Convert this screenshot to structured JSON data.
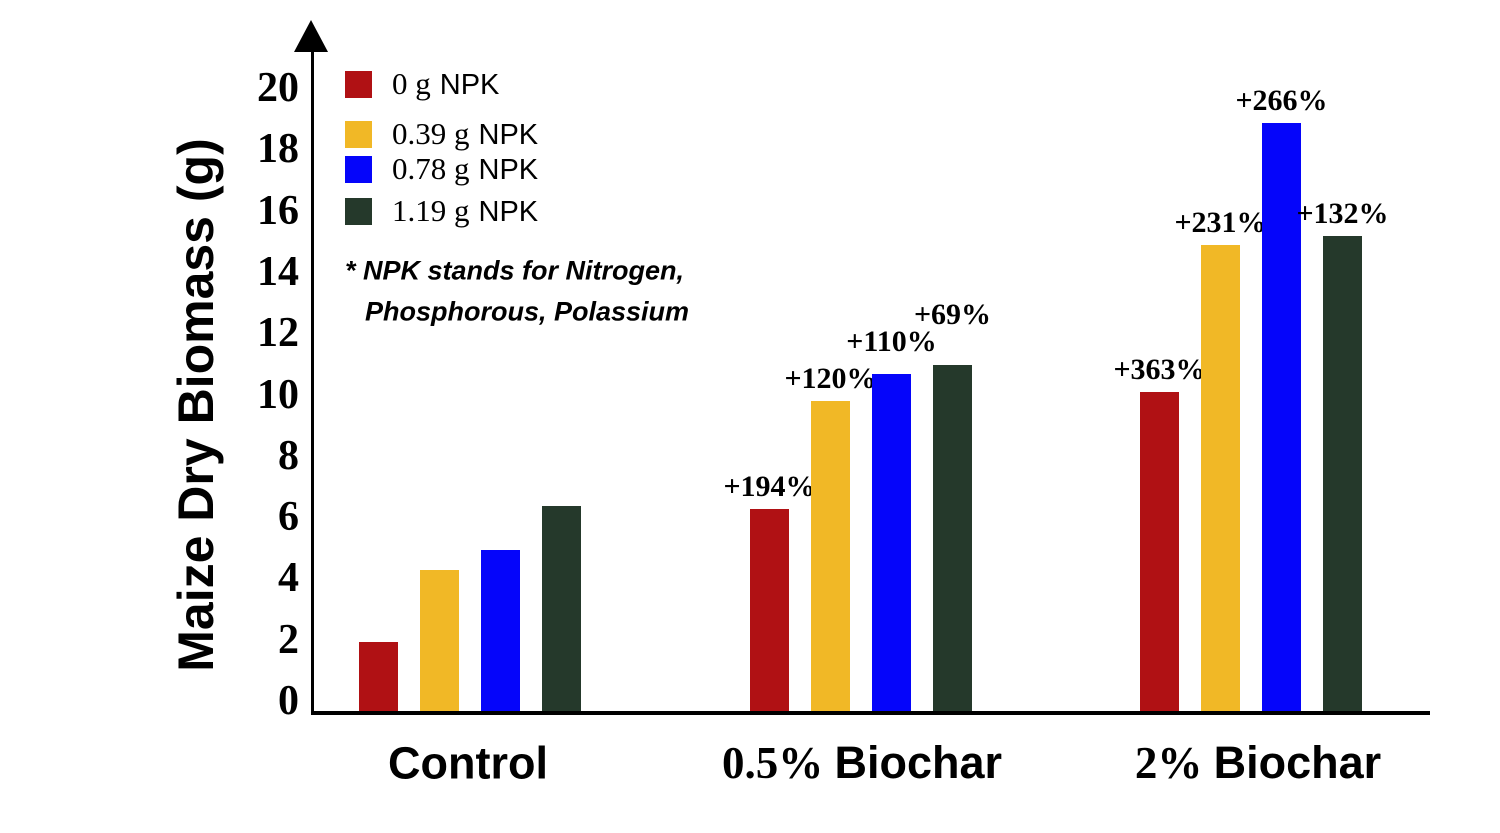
{
  "chart_data": {
    "type": "bar",
    "title": "",
    "xlabel": "",
    "ylabel": "Maize Dry Biomass (g)",
    "ylim": [
      0,
      20
    ],
    "yticks": [
      0,
      2,
      4,
      6,
      8,
      10,
      12,
      14,
      16,
      18,
      20
    ],
    "grid": false,
    "legend_position": "top-left",
    "categories": [
      "Control",
      "0.5% Biochar",
      "2% Biochar"
    ],
    "category_parts": [
      {
        "serif": "",
        "sans": "Control"
      },
      {
        "serif": "0.5%",
        "sans": "Biochar"
      },
      {
        "serif": "2%",
        "sans": "Biochar"
      }
    ],
    "series": [
      {
        "name": "0 g NPK",
        "color": "#B01114",
        "values": [
          2.25,
          6.6,
          10.4
        ],
        "annotations": [
          "",
          "+194%",
          "+363%"
        ]
      },
      {
        "name": "0.39 g NPK",
        "color": "#F1B826",
        "values": [
          4.6,
          10.1,
          15.2
        ],
        "annotations": [
          "",
          "+120%",
          "+231%"
        ]
      },
      {
        "name": "0.78 g NPK",
        "color": "#0505FA",
        "values": [
          5.25,
          11.0,
          19.2
        ],
        "annotations": [
          "",
          "+110%",
          "+266%"
        ]
      },
      {
        "name": "1.19 g NPK",
        "color": "#25392B",
        "values": [
          6.7,
          11.3,
          15.5
        ],
        "annotations": [
          "",
          "+69%",
          "+132%"
        ]
      }
    ]
  },
  "legend": {
    "items": [
      {
        "amount": "0 g",
        "suffix": "NPK",
        "color": "#B01114"
      },
      {
        "amount": "0.39 g",
        "suffix": "NPK",
        "color": "#F1B826"
      },
      {
        "amount": "0.78 g",
        "suffix": "NPK",
        "color": "#0505FA"
      },
      {
        "amount": "1.19 g",
        "suffix": "NPK",
        "color": "#25392B"
      }
    ],
    "note_lines": [
      "* NPK stands for Nitrogen,",
      "Phosphorous, Polassium"
    ]
  }
}
